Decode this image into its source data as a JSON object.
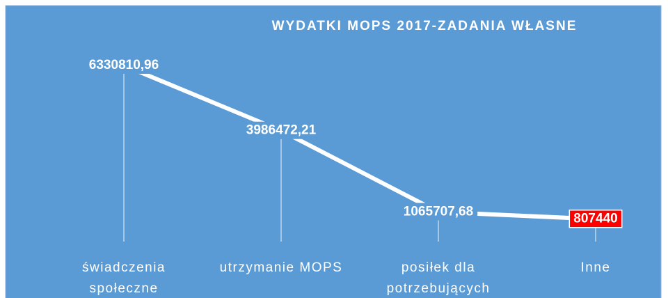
{
  "chart_data": {
    "type": "line",
    "title": "WYDATKI  MOPS 2017-ZADANIA  WŁASNE",
    "categories": [
      "świadczenia społeczne",
      "utrzymanie MOPS",
      "posiłek dla potrzebujących",
      "Inne"
    ],
    "values": [
      6330810.96,
      3986472.21,
      1065707.68,
      807440
    ],
    "value_labels": [
      "6330810,96",
      "3986472,21",
      "1065707,68",
      "807440"
    ],
    "color": "#ffffff",
    "background": "#5b9bd5",
    "highlight": "#ff0000"
  }
}
